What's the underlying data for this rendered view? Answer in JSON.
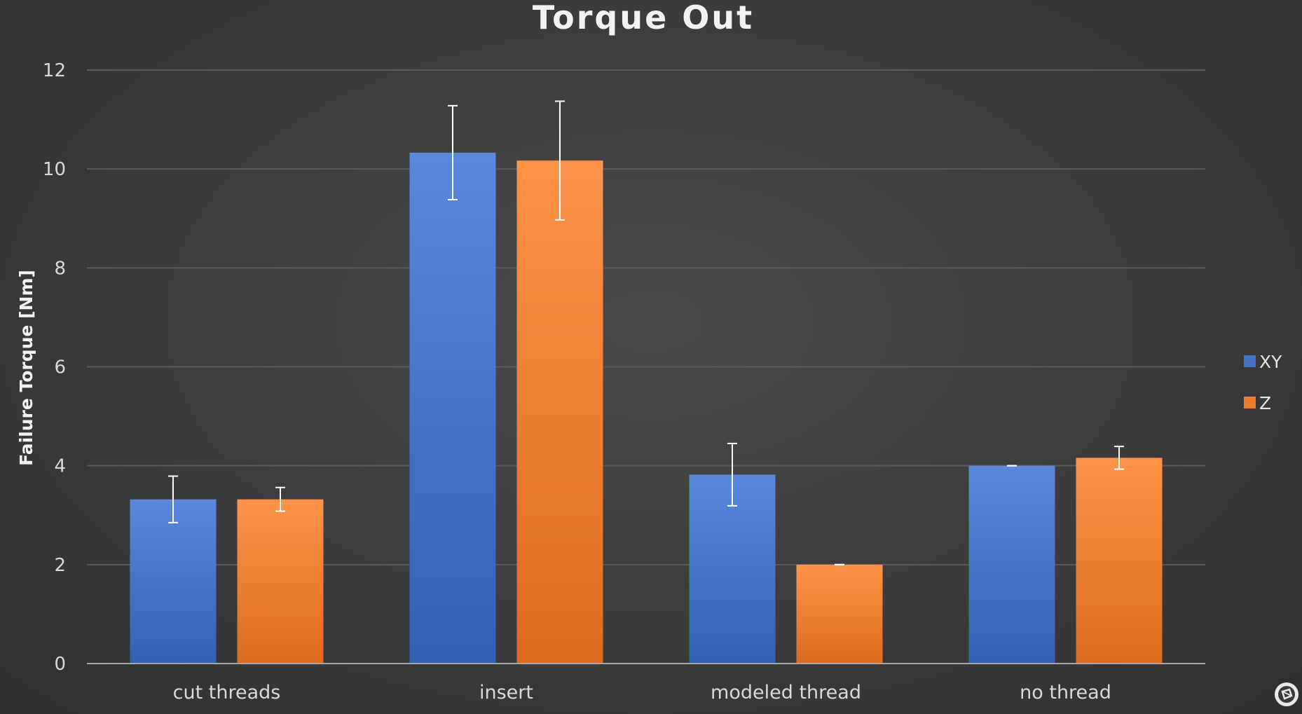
{
  "chart_data": {
    "type": "bar",
    "title": "Torque Out",
    "xlabel": "",
    "ylabel": "Failure Torque [Nm]",
    "ylim": [
      0,
      12
    ],
    "yticks": [
      0,
      2,
      4,
      6,
      8,
      10,
      12
    ],
    "grid": true,
    "legend_position": "right",
    "categories": [
      "cut threads",
      "insert",
      "modeled thread",
      "no thread"
    ],
    "series": [
      {
        "name": "XY",
        "color": "#4472c4",
        "values": [
          3.32,
          10.33,
          3.82,
          4.0
        ],
        "error": [
          0.47,
          0.95,
          0.63,
          0.0
        ]
      },
      {
        "name": "Z",
        "color": "#ed7d31",
        "values": [
          3.32,
          10.17,
          2.0,
          4.16
        ],
        "error": [
          0.24,
          1.2,
          0.0,
          0.23
        ]
      }
    ]
  },
  "colors": {
    "background": "#3c3c3c",
    "gridline": "#5a5a5a",
    "axis": "#a6a6a6",
    "errorbar": "#ffffff",
    "text": "#d9d9d9"
  },
  "corner_icon": "logo-icon"
}
